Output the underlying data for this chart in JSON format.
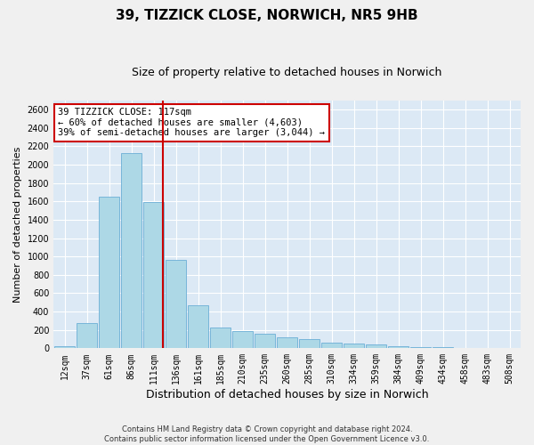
{
  "title": "39, TIZZICK CLOSE, NORWICH, NR5 9HB",
  "subtitle": "Size of property relative to detached houses in Norwich",
  "xlabel": "Distribution of detached houses by size in Norwich",
  "ylabel": "Number of detached properties",
  "footer_line1": "Contains HM Land Registry data © Crown copyright and database right 2024.",
  "footer_line2": "Contains public sector information licensed under the Open Government Licence v3.0.",
  "bar_labels": [
    "12sqm",
    "37sqm",
    "61sqm",
    "86sqm",
    "111sqm",
    "136sqm",
    "161sqm",
    "185sqm",
    "210sqm",
    "235sqm",
    "260sqm",
    "285sqm",
    "310sqm",
    "334sqm",
    "359sqm",
    "384sqm",
    "409sqm",
    "434sqm",
    "458sqm",
    "483sqm",
    "508sqm"
  ],
  "bar_values": [
    20,
    270,
    1650,
    2130,
    1590,
    960,
    470,
    230,
    185,
    155,
    115,
    100,
    62,
    50,
    42,
    25,
    16,
    10,
    7,
    4,
    2
  ],
  "bar_color": "#add8e6",
  "bar_edge_color": "#6baed6",
  "vline_color": "#cc0000",
  "vline_x": 4.42,
  "annotation_text": "39 TIZZICK CLOSE: 117sqm\n← 60% of detached houses are smaller (4,603)\n39% of semi-detached houses are larger (3,044) →",
  "annotation_box_color": "#ffffff",
  "annotation_box_edge": "#cc0000",
  "ylim": [
    0,
    2700
  ],
  "yticks": [
    0,
    200,
    400,
    600,
    800,
    1000,
    1200,
    1400,
    1600,
    1800,
    2000,
    2200,
    2400,
    2600
  ],
  "background_color": "#dce9f5",
  "grid_color": "#ffffff",
  "fig_facecolor": "#f0f0f0",
  "title_fontsize": 11,
  "subtitle_fontsize": 9,
  "xlabel_fontsize": 9,
  "ylabel_fontsize": 8,
  "tick_fontsize": 7,
  "annotation_fontsize": 7.5
}
